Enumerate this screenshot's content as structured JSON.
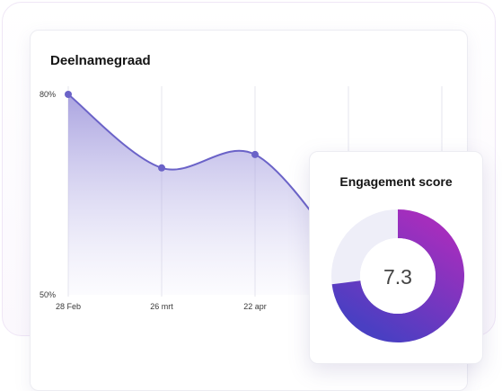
{
  "colors": {
    "line": "#6b63c8",
    "area_top": "#8f86d6",
    "grid": "#e6e6ee",
    "donut_start": "#a42ebd",
    "donut_end": "#4a3fc2",
    "donut_track": "#eeeef8"
  },
  "chart_data": [
    {
      "type": "area",
      "title": "Deelnamegraad",
      "x": [
        "28 Feb",
        "26 mrt",
        "22 apr",
        "",
        "",
        ""
      ],
      "series": [
        {
          "values": [
            80,
            69,
            71,
            55,
            null,
            null
          ]
        }
      ],
      "yticks": [
        "80%",
        "50%"
      ],
      "ylim": [
        50,
        80
      ],
      "grid": "vertical"
    },
    {
      "type": "pie",
      "title": "Engagement score",
      "value": 7.3,
      "display_value": "7.3",
      "max": 10
    }
  ]
}
